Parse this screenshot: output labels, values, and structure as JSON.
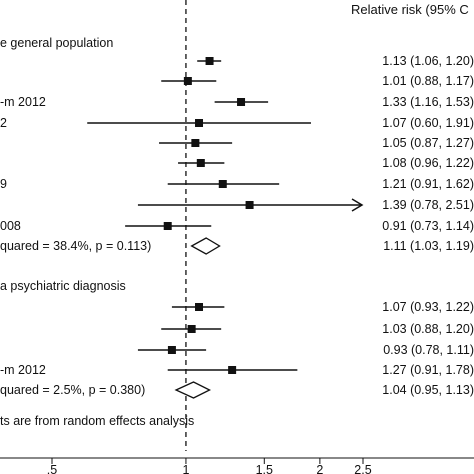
{
  "chart_data": {
    "type": "forest",
    "header_right": "Relative risk (95% C",
    "groups": [
      {
        "heading": "e general population",
        "studies": [
          {
            "label": "",
            "rr": 1.13,
            "lo": 1.06,
            "hi": 1.2,
            "text": "1.13 (1.06, 1.20)"
          },
          {
            "label": "",
            "rr": 1.01,
            "lo": 0.88,
            "hi": 1.17,
            "text": "1.01 (0.88, 1.17)"
          },
          {
            "label": "-m 2012",
            "rr": 1.33,
            "lo": 1.16,
            "hi": 1.53,
            "text": "1.33 (1.16, 1.53)"
          },
          {
            "label": "2",
            "rr": 1.07,
            "lo": 0.6,
            "hi": 1.91,
            "text": "1.07 (0.60, 1.91)"
          },
          {
            "label": "",
            "rr": 1.05,
            "lo": 0.87,
            "hi": 1.27,
            "text": "1.05 (0.87, 1.27)"
          },
          {
            "label": "",
            "rr": 1.08,
            "lo": 0.96,
            "hi": 1.22,
            "text": "1.08 (0.96, 1.22)"
          },
          {
            "label": "9",
            "rr": 1.21,
            "lo": 0.91,
            "hi": 1.62,
            "text": "1.21 (0.91, 1.62)"
          },
          {
            "label": "",
            "rr": 1.39,
            "lo": 0.78,
            "hi": 2.51,
            "text": "1.39 (0.78, 2.51)",
            "arrow": true
          },
          {
            "label": "008",
            "rr": 0.91,
            "lo": 0.73,
            "hi": 1.14,
            "text": "0.91 (0.73, 1.14)"
          }
        ],
        "summary": {
          "label": "quared = 38.4%, p = 0.113)",
          "rr": 1.11,
          "lo": 1.03,
          "hi": 1.19,
          "text": "1.11 (1.03, 1.19)"
        }
      },
      {
        "heading": "a psychiatric diagnosis",
        "studies": [
          {
            "label": "",
            "rr": 1.07,
            "lo": 0.93,
            "hi": 1.22,
            "text": "1.07 (0.93, 1.22)"
          },
          {
            "label": "",
            "rr": 1.03,
            "lo": 0.88,
            "hi": 1.2,
            "text": "1.03 (0.88, 1.20)"
          },
          {
            "label": "",
            "rr": 0.93,
            "lo": 0.78,
            "hi": 1.11,
            "text": "0.93 (0.78, 1.11)"
          },
          {
            "label": "-m 2012",
            "rr": 1.27,
            "lo": 0.91,
            "hi": 1.78,
            "text": "1.27 (0.91, 1.78)"
          }
        ],
        "summary": {
          "label": "quared = 2.5%, p = 0.380)",
          "rr": 1.04,
          "lo": 0.95,
          "hi": 1.13,
          "text": "1.04 (0.95, 1.13)"
        }
      }
    ],
    "footnote": "ts are from random effects analysis",
    "x_ticks": [
      {
        "value": 0.5,
        "label": ".5"
      },
      {
        "value": 1,
        "label": "1"
      },
      {
        "value": 1.5,
        "label": "1.5"
      },
      {
        "value": 2,
        "label": "2"
      },
      {
        "value": 2.5,
        "label": "2.5"
      }
    ],
    "reference_value": 1,
    "x_scale": "log"
  }
}
